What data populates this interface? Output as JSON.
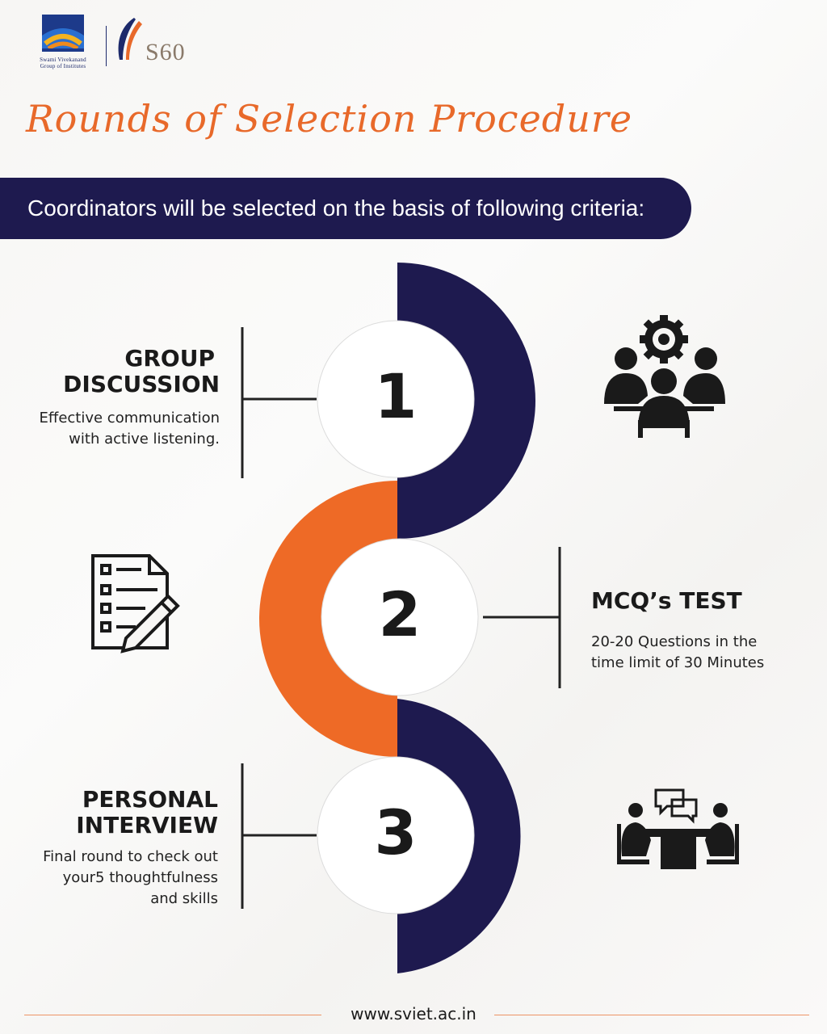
{
  "logo": {
    "caption_line1": "Swami Vivekanand",
    "caption_line2": "Group of Institutes",
    "s60": "S60"
  },
  "title": "Rounds of Selection Procedure",
  "banner": "Coordinators will be selected on the basis of following criteria:",
  "rounds": [
    {
      "number": "1",
      "heading_line1": "GROUP",
      "heading_line2": "DISCUSSION",
      "desc_line1": "Effective communication",
      "desc_line2": "with active listening.",
      "icon": "team-meeting-gear-icon"
    },
    {
      "number": "2",
      "heading": "MCQ’s TEST",
      "desc_line1": "20-20 Questions in the",
      "desc_line2": "time limit of 30 Minutes",
      "icon": "checklist-pencil-icon"
    },
    {
      "number": "3",
      "heading_line1": "PERSONAL",
      "heading_line2": "INTERVIEW",
      "desc_line1": "Final round to check out",
      "desc_line2": "your5 thoughtfulness",
      "desc_line3": "and skills",
      "icon": "interview-table-icon"
    }
  ],
  "footer": {
    "url": "www.sviet.ac.in"
  },
  "colors": {
    "navy": "#1e1a4f",
    "orange": "#ee6a26",
    "text": "#1a1a1a"
  }
}
